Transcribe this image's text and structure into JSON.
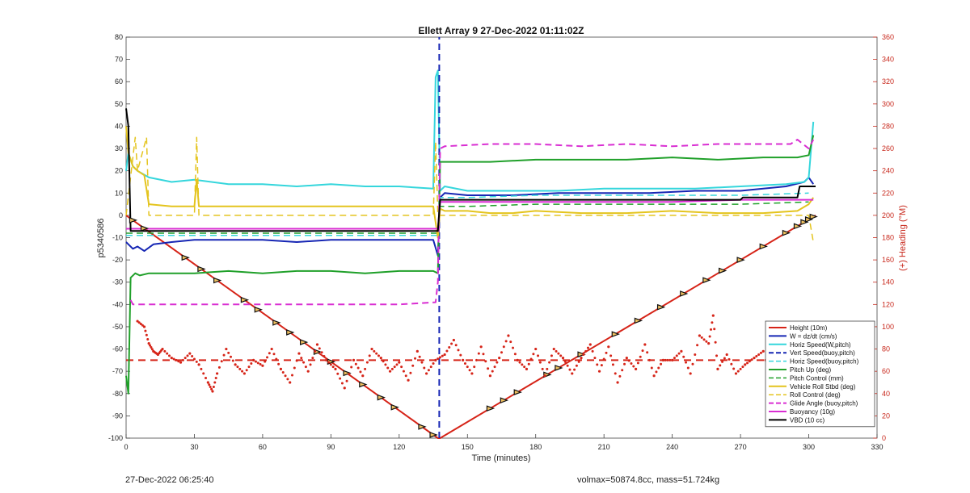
{
  "chart_data": {
    "type": "line",
    "title": "Ellett Array 9 27-Dec-2022 01:11:02Z",
    "xlabel": "Time (minutes)",
    "ylabel": "p5340586",
    "y2label": "(+) Heading (°M)",
    "xlim": [
      0,
      330
    ],
    "ylim": [
      -100,
      80
    ],
    "y2lim": [
      0,
      360
    ],
    "xticks": [
      0,
      30,
      60,
      90,
      120,
      150,
      180,
      210,
      240,
      270,
      300,
      330
    ],
    "yticks": [
      -100,
      -90,
      -80,
      -70,
      -60,
      -50,
      -40,
      -30,
      -20,
      -10,
      0,
      10,
      20,
      30,
      40,
      50,
      60,
      70,
      80
    ],
    "y2ticks": [
      0,
      20,
      40,
      60,
      80,
      100,
      120,
      140,
      160,
      180,
      200,
      220,
      240,
      260,
      280,
      300,
      320,
      340,
      360
    ],
    "grid": false,
    "legend_position": "bottom-right",
    "colors": {
      "red": "#d62418",
      "blue": "#1626b4",
      "cyan": "#35d6dc",
      "green": "#20a02a",
      "yellow": "#e4c41e",
      "magenta": "#d92ed2",
      "black": "#000000",
      "axis_right": "#c8281c"
    },
    "series": [
      {
        "name": "Height (10m)",
        "color": "#d62418",
        "style": "solid",
        "width": 2,
        "x": [
          0,
          137,
          138,
          303
        ],
        "y": [
          0,
          -100,
          -100,
          0
        ]
      },
      {
        "name": "W = dz/dt (cm/s)",
        "color": "#1626b4",
        "style": "solid",
        "width": 2,
        "x": [
          0,
          3,
          5,
          8,
          12,
          20,
          30,
          45,
          60,
          75,
          90,
          105,
          120,
          135,
          137,
          138,
          140,
          150,
          170,
          190,
          210,
          230,
          250,
          270,
          290,
          298,
          300,
          302
        ],
        "y": [
          -12,
          -15,
          -14,
          -16,
          -13,
          -12,
          -11,
          -11,
          -11,
          -12,
          -11,
          -11,
          -11,
          -11,
          -18,
          8,
          10,
          9,
          9,
          10,
          10,
          10,
          11,
          11,
          13,
          15,
          17,
          14
        ]
      },
      {
        "name": "Horiz Speed(W,pitch)",
        "color": "#35d6dc",
        "style": "solid",
        "width": 2,
        "x": [
          0,
          1,
          3,
          5,
          10,
          20,
          30,
          45,
          60,
          75,
          90,
          105,
          120,
          135,
          136,
          137,
          138,
          140,
          150,
          170,
          190,
          210,
          230,
          250,
          270,
          290,
          298,
          300,
          302
        ],
        "y": [
          20,
          28,
          22,
          20,
          17,
          15,
          16,
          14,
          14,
          13,
          14,
          13,
          13,
          12,
          62,
          65,
          11,
          13,
          11,
          11,
          11,
          12,
          12,
          12,
          13,
          14,
          15,
          17,
          42
        ]
      },
      {
        "name": "Vert Speed(buoy,pitch)",
        "color": "#1626b4",
        "style": "dashed",
        "width": 2,
        "x": [
          137.6,
          137.6
        ],
        "y": [
          -100,
          80
        ]
      },
      {
        "name": "Horiz Speed(buoy,pitch)",
        "color": "#35d6dc",
        "style": "dashed",
        "width": 1.5,
        "x": [
          0,
          30,
          60,
          90,
          120,
          137,
          138,
          150,
          180,
          210,
          240,
          270,
          300
        ],
        "y": [
          -9,
          -9,
          -9,
          -9,
          -9,
          -9,
          8,
          8,
          9,
          9,
          9,
          9,
          10
        ]
      },
      {
        "name": "Pitch Up (deg)",
        "color": "#20a02a",
        "style": "solid",
        "width": 2,
        "x": [
          0,
          1,
          2,
          4,
          6,
          10,
          20,
          30,
          45,
          60,
          75,
          90,
          105,
          120,
          135,
          137,
          138,
          140,
          160,
          180,
          200,
          220,
          240,
          260,
          280,
          295,
          300,
          302
        ],
        "y": [
          -72,
          -80,
          -28,
          -26,
          -27,
          -26,
          -26,
          -26,
          -25,
          -26,
          -25,
          -25,
          -26,
          -25,
          -25,
          -26,
          24,
          24,
          24,
          25,
          25,
          25,
          26,
          25,
          26,
          26,
          27,
          36
        ]
      },
      {
        "name": "Pitch Control (mm)",
        "color": "#20a02a",
        "style": "dashed",
        "width": 1.5,
        "x": [
          0,
          30,
          60,
          90,
          120,
          137,
          138,
          150,
          180,
          210,
          240,
          270,
          300
        ],
        "y": [
          -8,
          -8,
          -8,
          -8,
          -8,
          -8,
          4,
          4,
          5,
          5,
          5,
          5,
          6
        ]
      },
      {
        "name": "Vehicle Roll Stbd (deg)",
        "color": "#e4c41e",
        "style": "solid",
        "width": 2,
        "x": [
          0,
          1,
          3,
          5,
          8,
          10,
          20,
          30,
          31,
          32,
          45,
          60,
          75,
          90,
          105,
          120,
          135,
          137,
          138,
          140,
          150,
          160,
          170,
          180,
          200,
          220,
          240,
          260,
          280,
          295,
          300,
          302
        ],
        "y": [
          40,
          28,
          22,
          20,
          18,
          5,
          4,
          4,
          16,
          4,
          4,
          4,
          4,
          4,
          4,
          4,
          4,
          -10,
          3,
          2,
          2,
          1,
          1,
          2,
          1,
          1,
          2,
          1,
          1,
          2,
          5,
          8
        ]
      },
      {
        "name": "Roll Control (deg)",
        "color": "#e4c41e",
        "style": "dashed",
        "width": 1.5,
        "x": [
          0,
          4,
          5,
          9,
          10,
          30,
          31,
          32,
          33,
          40,
          45,
          60,
          75,
          90,
          105,
          120,
          135,
          136,
          137,
          138,
          140,
          160,
          180,
          200,
          220,
          240,
          260,
          280,
          300,
          302
        ],
        "y": [
          0,
          35,
          20,
          35,
          0,
          0,
          35,
          0,
          0,
          0,
          0,
          0,
          0,
          0,
          0,
          0,
          0,
          33,
          0,
          0,
          0,
          0,
          0,
          0,
          0,
          0,
          0,
          0,
          0,
          -12
        ]
      },
      {
        "name": "Glide Angle (buoy,pitch)",
        "color": "#d92ed2",
        "style": "dashed",
        "width": 2,
        "x": [
          2,
          3,
          10,
          30,
          60,
          90,
          120,
          136,
          137,
          138,
          140,
          160,
          180,
          200,
          220,
          240,
          260,
          280,
          292,
          295,
          300,
          302
        ],
        "y": [
          -38,
          -40,
          -40,
          -40,
          -40,
          -40,
          -40,
          -39,
          -30,
          30,
          31,
          32,
          32,
          31,
          32,
          31,
          32,
          32,
          32,
          34,
          30,
          34
        ]
      },
      {
        "name": "Buoyancy (10g)",
        "color": "#d92ed2",
        "style": "solid",
        "width": 2,
        "x": [
          0,
          30,
          60,
          90,
          120,
          137,
          138,
          180,
          240,
          270,
          300,
          302
        ],
        "y": [
          -6,
          -6,
          -6,
          -6,
          -6,
          -6,
          6,
          6,
          6,
          7,
          7,
          7
        ]
      },
      {
        "name": "VBD (10 cc)",
        "color": "#000000",
        "style": "solid",
        "width": 2,
        "x": [
          0,
          1,
          2,
          137,
          138,
          270,
          271,
          295,
          296,
          303
        ],
        "y": [
          48,
          40,
          -7,
          -7,
          7,
          7,
          8,
          8,
          13,
          13
        ]
      }
    ],
    "heading_series": {
      "name": "Heading",
      "axis": "right",
      "color": "#d62418",
      "mean": 70,
      "x": [
        5,
        8,
        10,
        12,
        14,
        16,
        20,
        24,
        28,
        32,
        36,
        38,
        40,
        44,
        48,
        52,
        56,
        60,
        64,
        68,
        72,
        76,
        80,
        84,
        88,
        92,
        96,
        100,
        104,
        108,
        112,
        116,
        120,
        124,
        128,
        132,
        136,
        140,
        144,
        148,
        152,
        156,
        160,
        164,
        168,
        172,
        176,
        180,
        184,
        188,
        192,
        196,
        200,
        204,
        208,
        212,
        216,
        220,
        224,
        228,
        232,
        236,
        240,
        244,
        248,
        252,
        256,
        258,
        260,
        264,
        268,
        272,
        276,
        280,
        284,
        288,
        292,
        296,
        300
      ],
      "y": [
        105,
        100,
        85,
        78,
        75,
        80,
        72,
        68,
        76,
        66,
        50,
        42,
        58,
        80,
        66,
        58,
        70,
        65,
        80,
        62,
        50,
        76,
        60,
        84,
        70,
        62,
        45,
        70,
        56,
        80,
        72,
        60,
        68,
        52,
        78,
        58,
        70,
        75,
        88,
        70,
        58,
        82,
        56,
        72,
        92,
        70,
        62,
        80,
        56,
        80,
        72,
        58,
        72,
        84,
        60,
        82,
        50,
        72,
        62,
        84,
        56,
        70,
        70,
        78,
        58,
        92,
        85,
        110,
        62,
        75,
        58,
        66,
        72,
        78,
        46,
        70,
        58,
        64,
        68
      ]
    },
    "annotations": [
      {
        "text": "27-Dec-2022 06:25:40",
        "position": "bottom-left"
      },
      {
        "text": "volmax=50874.8cc, mass=51.724kg",
        "position": "bottom-center"
      }
    ]
  }
}
